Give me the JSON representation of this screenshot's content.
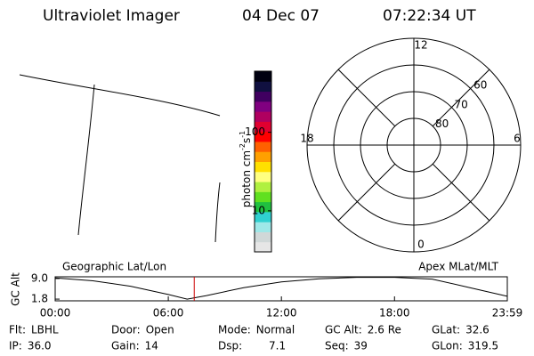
{
  "header": {
    "instrument": "Ultraviolet Imager",
    "date": "04 Dec 07",
    "time": "07:22:34 UT"
  },
  "colorbar": {
    "label": "photon cm",
    "exp1": "-2",
    "unit2": "s",
    "exp2": "-1",
    "log": true,
    "range": [
      3,
      600
    ],
    "ticks": [
      10,
      100
    ]
  },
  "polar": {
    "lat_range": [
      50,
      90
    ],
    "lat_labels": [
      60,
      70,
      80
    ],
    "mlt_labels": [
      12,
      18,
      6,
      0
    ]
  },
  "timeline": {
    "left_title": "Geographic Lat/Lon",
    "right_title": "Apex MLat/MLT",
    "ylabel": "GC Alt",
    "ylim": [
      1.2,
      9.6
    ],
    "yticks": [
      {
        "value": 9,
        "label": "9.0"
      },
      {
        "value": 1.8,
        "label": "1.8"
      }
    ],
    "xlim": [
      0,
      23.983
    ],
    "xticks": [
      {
        "value": 0,
        "label": "00:00"
      },
      {
        "value": 6,
        "label": "06:00"
      },
      {
        "value": 12,
        "label": "12:00"
      },
      {
        "value": 18,
        "label": "18:00"
      },
      {
        "value": 23.983,
        "label": "23:59"
      }
    ],
    "x": [
      0,
      2,
      4,
      6,
      7,
      8,
      10,
      12,
      14,
      16,
      18,
      20,
      22,
      23.98
    ],
    "values": [
      9.2,
      8.2,
      6.3,
      3.4,
      1.8,
      3.0,
      5.8,
      7.8,
      8.9,
      9.4,
      9.4,
      8.8,
      5.8,
      2.8
    ],
    "marker": 7.376,
    "marker_color": "#cc0000"
  },
  "info": [
    {
      "label": "Flt:",
      "value": "LBHL"
    },
    {
      "label": "Door:",
      "value": "Open"
    },
    {
      "label": "Mode:",
      "value": "Normal"
    },
    {
      "label": "GC Alt:",
      "value": "2.6 Re"
    },
    {
      "label": "GLat:",
      "value": "32.6"
    },
    {
      "label": "IP:",
      "value": "36.0"
    },
    {
      "label": "Gain:",
      "value": "14"
    },
    {
      "label": "Dsp:",
      "value": "7.1"
    },
    {
      "label": "Seq:",
      "value": "39"
    },
    {
      "label": "GLon:",
      "value": "319.5"
    }
  ]
}
